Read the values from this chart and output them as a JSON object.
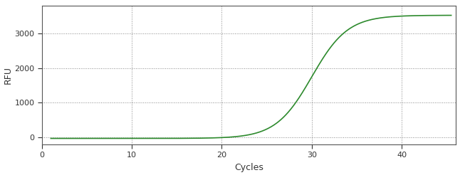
{
  "title": "",
  "xlabel": "Cycles",
  "ylabel": "RFU",
  "line_color": "#2d8a2d",
  "line_width": 1.2,
  "background_color": "#ffffff",
  "grid_color": "#888888",
  "xlim": [
    0,
    46
  ],
  "ylim": [
    -200,
    3800
  ],
  "xticks": [
    0,
    10,
    20,
    30,
    40
  ],
  "yticks": [
    0,
    1000,
    2000,
    3000
  ],
  "sigmoid_L": 3550,
  "sigmoid_k": 0.5,
  "sigmoid_x0": 30.0,
  "x_start": 1,
  "x_end": 45.5,
  "xlabel_fontsize": 9,
  "ylabel_fontsize": 9,
  "tick_fontsize": 8,
  "axis_color": "#333333",
  "plot_bg_color": "#ffffff",
  "spine_color": "#555555"
}
